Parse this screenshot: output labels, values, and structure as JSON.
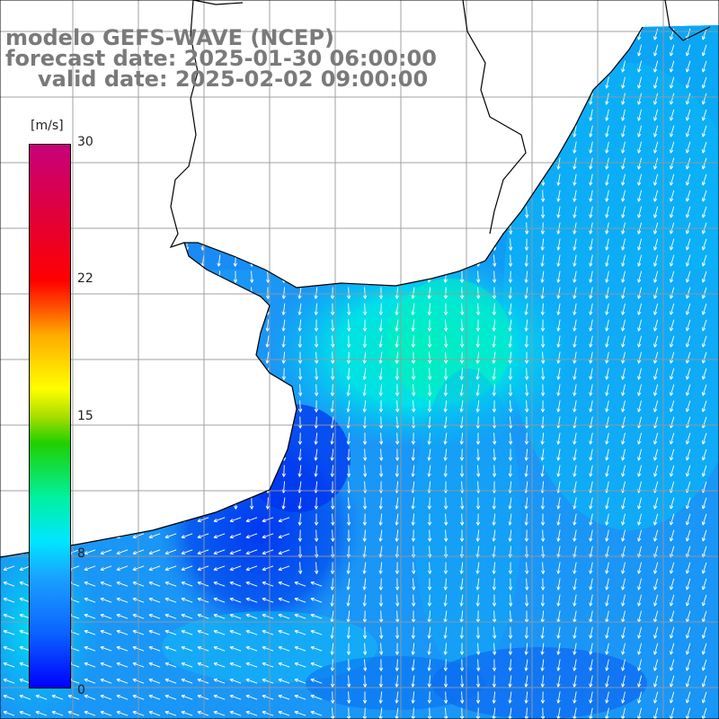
{
  "title": {
    "line1": "modelo GEFS-WAVE (NCEP)",
    "line2": "forecast date: 2025-01-30 06:00:00",
    "line3": "valid date: 2025-02-02 09:00:00"
  },
  "colorbar": {
    "unit": "[m/s]",
    "ticks": [
      "30",
      "22",
      "15",
      "8",
      "0"
    ],
    "min": 0,
    "max": 30,
    "colors": [
      "#0000ff",
      "#0b63ff",
      "#1aa0ff",
      "#00e6ff",
      "#00f0a0",
      "#20d000",
      "#ffff00",
      "#ff5000",
      "#ff0000",
      "#c8007a"
    ]
  },
  "map": {
    "field": "wind speed and direction",
    "speed_range_shown_ms": [
      2,
      9
    ],
    "prevailing_direction": "southward",
    "grid": true,
    "land_color": "#ffffff"
  }
}
